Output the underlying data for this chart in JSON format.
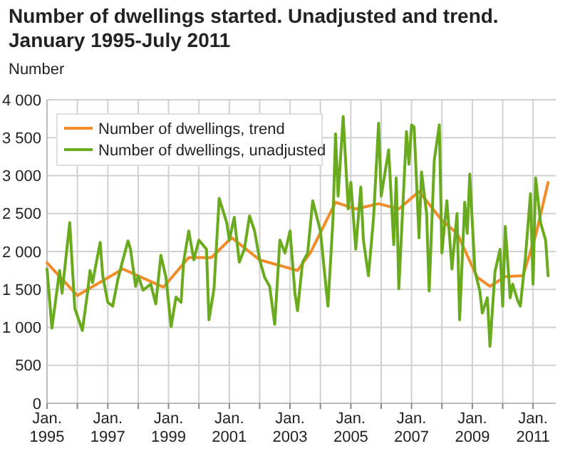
{
  "chart_data": {
    "type": "line",
    "title": "Number of dwellings started. Unadjusted and trend.\nJanuary 1995-July 2011",
    "ylabel": "Number",
    "xlim": [
      "1995-01",
      "2011-10"
    ],
    "xticks": [
      {
        "value": "1995-01",
        "label": "Jan.\n1995"
      },
      {
        "value": "1996-01",
        "label": null
      },
      {
        "value": "1997-01",
        "label": "Jan.\n1997"
      },
      {
        "value": "1998-01",
        "label": null
      },
      {
        "value": "1999-01",
        "label": "Jan.\n1999"
      },
      {
        "value": "2000-01",
        "label": null
      },
      {
        "value": "2001-01",
        "label": "Jan.\n2001"
      },
      {
        "value": "2002-01",
        "label": null
      },
      {
        "value": "2003-01",
        "label": "Jan.\n2003"
      },
      {
        "value": "2004-01",
        "label": null
      },
      {
        "value": "2005-01",
        "label": "Jan.\n2005"
      },
      {
        "value": "2006-01",
        "label": null
      },
      {
        "value": "2007-01",
        "label": "Jan.\n2007"
      },
      {
        "value": "2008-01",
        "label": null
      },
      {
        "value": "2009-01",
        "label": "Jan.\n2009"
      },
      {
        "value": "2010-01",
        "label": null
      },
      {
        "value": "2011-01",
        "label": "Jan.\n2011"
      }
    ],
    "ylim": [
      0,
      4000
    ],
    "yticks": [
      {
        "value": 0,
        "label": "0"
      },
      {
        "value": 500,
        "label": "500"
      },
      {
        "value": 1000,
        "label": "1 000"
      },
      {
        "value": 1500,
        "label": "1 500"
      },
      {
        "value": 2000,
        "label": "2 000"
      },
      {
        "value": 2500,
        "label": "2 500"
      },
      {
        "value": 3000,
        "label": "3 000"
      },
      {
        "value": 3500,
        "label": "3 500"
      },
      {
        "value": 4000,
        "label": "4 000"
      }
    ],
    "grid": true,
    "legend": "top left",
    "line_style": "solid",
    "marker": "none",
    "series": [
      {
        "name": "Number of dwellings, trend",
        "color": "#f28c28",
        "x": [
          "1995-01",
          "1996-01",
          "1997-07",
          "1998-11",
          "1999-09",
          "2000-06",
          "2000-12",
          "2001-02",
          "2002-01",
          "2003-04",
          "2003-09",
          "2004-07",
          "2005-03",
          "2005-12",
          "2006-08",
          "2007-04",
          "2008-01",
          "2008-07",
          "2009-03",
          "2009-08",
          "2010-02",
          "2010-09",
          "2011-02",
          "2011-07"
        ],
        "values": [
          1850,
          1420,
          1770,
          1530,
          1920,
          1920,
          2120,
          2180,
          1890,
          1750,
          1980,
          2650,
          2560,
          2630,
          2560,
          2790,
          2410,
          2240,
          1660,
          1540,
          1670,
          1680,
          2210,
          2910
        ]
      },
      {
        "name": "Number of dwellings, unadjusted",
        "color": "#6aaa1e",
        "x": [
          "1995-01",
          "1995-03",
          "1995-06",
          "1995-07",
          "1995-10",
          "1995-12",
          "1996-03",
          "1996-05",
          "1996-06",
          "1996-07",
          "1996-10",
          "1996-11",
          "1997-01",
          "1997-03",
          "1997-05",
          "1997-07",
          "1997-09",
          "1997-10",
          "1997-12",
          "1998-01",
          "1998-03",
          "1998-06",
          "1998-08",
          "1998-10",
          "1998-12",
          "1999-02",
          "1999-04",
          "1999-06",
          "1999-07",
          "1999-09",
          "1999-11",
          "2000-01",
          "2000-04",
          "2000-05",
          "2000-07",
          "2000-09",
          "2000-12",
          "2001-01",
          "2001-03",
          "2001-05",
          "2001-07",
          "2001-09",
          "2001-11",
          "2002-01",
          "2002-03",
          "2002-05",
          "2002-07",
          "2002-09",
          "2002-11",
          "2003-01",
          "2003-03",
          "2003-04",
          "2003-06",
          "2003-08",
          "2003-10",
          "2004-01",
          "2004-04",
          "2004-06",
          "2004-07",
          "2004-08",
          "2004-10",
          "2004-12",
          "2005-01",
          "2005-03",
          "2005-05",
          "2005-06",
          "2005-08",
          "2005-10",
          "2005-12",
          "2006-01",
          "2006-04",
          "2006-06",
          "2006-07",
          "2006-08",
          "2006-11",
          "2006-12",
          "2007-01",
          "2007-02",
          "2007-04",
          "2007-05",
          "2007-07",
          "2007-08",
          "2007-10",
          "2007-12",
          "2008-01",
          "2008-03",
          "2008-05",
          "2008-07",
          "2008-08",
          "2008-10",
          "2008-11",
          "2008-12",
          "2009-02",
          "2009-04",
          "2009-05",
          "2009-07",
          "2009-08",
          "2009-10",
          "2009-12",
          "2010-01",
          "2010-02",
          "2010-04",
          "2010-05",
          "2010-07",
          "2010-08",
          "2010-10",
          "2010-12",
          "2011-01",
          "2011-02",
          "2011-04",
          "2011-06",
          "2011-07"
        ],
        "values": [
          1770,
          990,
          1750,
          1450,
          2380,
          1250,
          960,
          1450,
          1750,
          1590,
          2120,
          1680,
          1330,
          1280,
          1630,
          1890,
          2140,
          2030,
          1540,
          1680,
          1490,
          1570,
          1310,
          1950,
          1660,
          1010,
          1400,
          1330,
          1860,
          2270,
          1890,
          2150,
          2030,
          1100,
          1510,
          2700,
          2380,
          2150,
          2450,
          1860,
          2030,
          2470,
          2270,
          1890,
          1660,
          1540,
          1040,
          2150,
          1980,
          2270,
          1450,
          1220,
          1860,
          1980,
          2670,
          2270,
          1280,
          2440,
          3550,
          2730,
          3780,
          2560,
          2910,
          2030,
          2850,
          2150,
          1680,
          2440,
          3690,
          2730,
          3340,
          2090,
          2970,
          1510,
          3580,
          3150,
          3670,
          3640,
          2180,
          3050,
          2500,
          1480,
          3200,
          3670,
          1980,
          2670,
          1770,
          2500,
          1100,
          2650,
          2240,
          3020,
          1740,
          1480,
          1190,
          1390,
          750,
          1740,
          2030,
          1280,
          2330,
          1390,
          1570,
          1350,
          1280,
          1920,
          2760,
          1570,
          2970,
          2380,
          2150,
          1680
        ]
      }
    ]
  }
}
